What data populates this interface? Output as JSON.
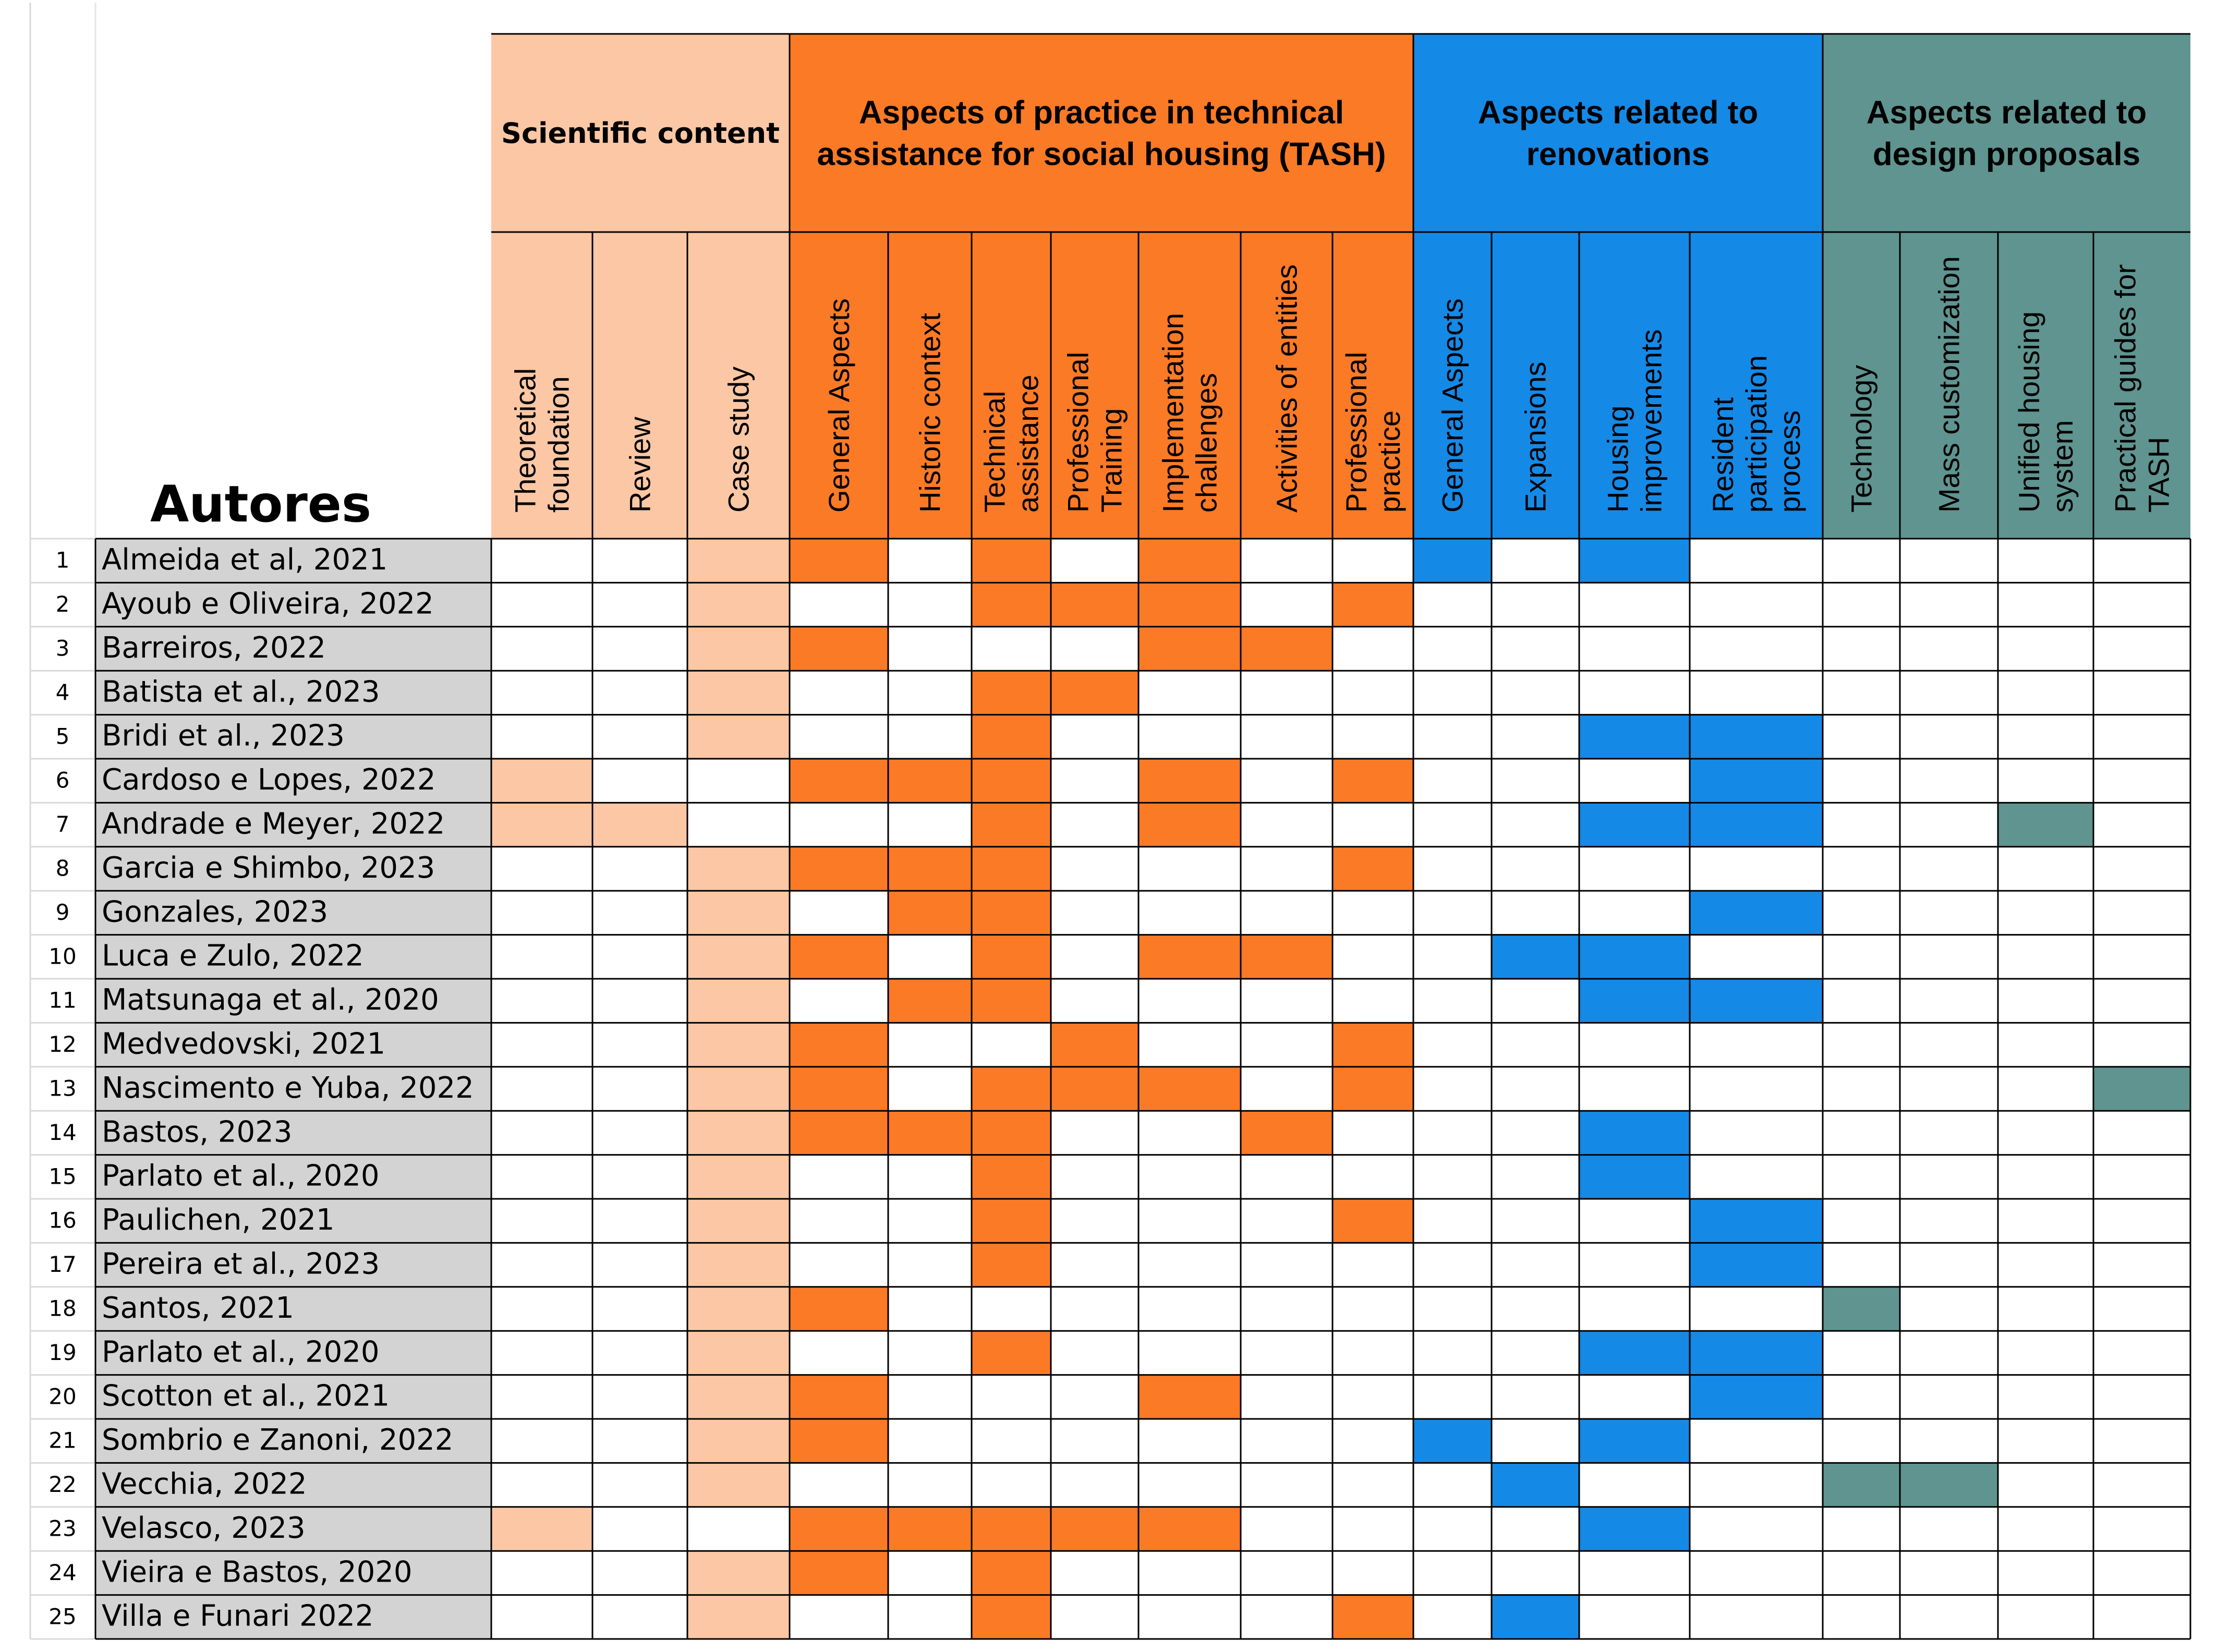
{
  "chart_data": {
    "type": "table",
    "corner_label": "Autores",
    "colors": {
      "scientific": "#fcc7a4",
      "tash": "#fa7a26",
      "renovations": "#1589e6",
      "design": "#5f9490",
      "author_bg": "#d3d3d3"
    },
    "groups": [
      {
        "key": "scientific",
        "title_lines": [
          "Scientific content"
        ]
      },
      {
        "key": "tash",
        "title_lines": [
          "Aspects of practice in technical",
          "assistance for social housing (TASH)"
        ]
      },
      {
        "key": "renovations",
        "title_lines": [
          "Aspects related to",
          "renovations"
        ]
      },
      {
        "key": "design",
        "title_lines": [
          "Aspects related to",
          "design proposals"
        ]
      }
    ],
    "columns": [
      {
        "group": "scientific",
        "lines": [
          "Theoretical",
          "foundation"
        ]
      },
      {
        "group": "scientific",
        "lines": [
          "Review"
        ]
      },
      {
        "group": "scientific",
        "lines": [
          "Case study"
        ]
      },
      {
        "group": "tash",
        "lines": [
          "General Aspects"
        ]
      },
      {
        "group": "tash",
        "lines": [
          "Historic context"
        ]
      },
      {
        "group": "tash",
        "lines": [
          "Technical",
          "assistance"
        ]
      },
      {
        "group": "tash",
        "lines": [
          "Professional",
          "Training"
        ]
      },
      {
        "group": "tash",
        "lines": [
          "Implementation",
          "challenges"
        ]
      },
      {
        "group": "tash",
        "lines": [
          "Activities of entities"
        ]
      },
      {
        "group": "tash",
        "lines": [
          "Professional",
          "practice"
        ]
      },
      {
        "group": "renovations",
        "lines": [
          "General Aspects"
        ]
      },
      {
        "group": "renovations",
        "lines": [
          "Expansions"
        ]
      },
      {
        "group": "renovations",
        "lines": [
          "Housing",
          "improvements"
        ]
      },
      {
        "group": "renovations",
        "lines": [
          "Resident",
          "participation",
          "process"
        ]
      },
      {
        "group": "design",
        "lines": [
          "Technology"
        ]
      },
      {
        "group": "design",
        "lines": [
          "Mass customization"
        ]
      },
      {
        "group": "design",
        "lines": [
          "Unified housing",
          "system"
        ]
      },
      {
        "group": "design",
        "lines": [
          "Practical guides for",
          "TASH"
        ]
      }
    ],
    "rows": [
      {
        "num": "1",
        "author": "Almeida et al, 2021",
        "marks": [
          0,
          0,
          1,
          1,
          0,
          1,
          0,
          1,
          0,
          0,
          1,
          0,
          1,
          0,
          0,
          0,
          0,
          0
        ]
      },
      {
        "num": "2",
        "author": "Ayoub e Oliveira, 2022",
        "marks": [
          0,
          0,
          1,
          0,
          0,
          1,
          1,
          1,
          0,
          1,
          0,
          0,
          0,
          0,
          0,
          0,
          0,
          0
        ]
      },
      {
        "num": "3",
        "author": "Barreiros, 2022",
        "marks": [
          0,
          0,
          1,
          1,
          0,
          0,
          0,
          1,
          1,
          0,
          0,
          0,
          0,
          0,
          0,
          0,
          0,
          0
        ]
      },
      {
        "num": "4",
        "author": "Batista et al., 2023",
        "marks": [
          0,
          0,
          1,
          0,
          0,
          1,
          1,
          0,
          0,
          0,
          0,
          0,
          0,
          0,
          0,
          0,
          0,
          0
        ]
      },
      {
        "num": "5",
        "author": "Bridi et al., 2023",
        "marks": [
          0,
          0,
          1,
          0,
          0,
          1,
          0,
          0,
          0,
          0,
          0,
          0,
          1,
          1,
          0,
          0,
          0,
          0
        ]
      },
      {
        "num": "6",
        "author": "Cardoso e Lopes, 2022",
        "marks": [
          1,
          0,
          0,
          1,
          1,
          1,
          0,
          1,
          0,
          1,
          0,
          0,
          0,
          1,
          0,
          0,
          0,
          0
        ]
      },
      {
        "num": "7",
        "author": "Andrade e Meyer, 2022",
        "marks": [
          1,
          1,
          0,
          0,
          0,
          1,
          0,
          1,
          0,
          0,
          0,
          0,
          1,
          1,
          0,
          0,
          1,
          0
        ]
      },
      {
        "num": "8",
        "author": "Garcia e Shimbo, 2023",
        "marks": [
          0,
          0,
          1,
          1,
          1,
          1,
          0,
          0,
          0,
          1,
          0,
          0,
          0,
          0,
          0,
          0,
          0,
          0
        ]
      },
      {
        "num": "9",
        "author": "Gonzales, 2023",
        "marks": [
          0,
          0,
          1,
          0,
          1,
          1,
          0,
          0,
          0,
          0,
          0,
          0,
          0,
          1,
          0,
          0,
          0,
          0
        ]
      },
      {
        "num": "10",
        "author": "Luca e Zulo, 2022",
        "marks": [
          0,
          0,
          1,
          1,
          0,
          1,
          0,
          1,
          1,
          0,
          0,
          1,
          1,
          0,
          0,
          0,
          0,
          0
        ]
      },
      {
        "num": "11",
        "author": "Matsunaga et al., 2020",
        "marks": [
          0,
          0,
          1,
          0,
          1,
          1,
          0,
          0,
          0,
          0,
          0,
          0,
          1,
          1,
          0,
          0,
          0,
          0
        ]
      },
      {
        "num": "12",
        "author": "Medvedovski, 2021",
        "marks": [
          0,
          0,
          1,
          1,
          0,
          0,
          1,
          0,
          0,
          1,
          0,
          0,
          0,
          0,
          0,
          0,
          0,
          0
        ]
      },
      {
        "num": "13",
        "author": "Nascimento e Yuba, 2022",
        "marks": [
          0,
          0,
          1,
          1,
          0,
          1,
          1,
          1,
          0,
          1,
          0,
          0,
          0,
          0,
          0,
          0,
          0,
          1
        ]
      },
      {
        "num": "14",
        "author": "Bastos, 2023",
        "marks": [
          0,
          0,
          1,
          1,
          1,
          1,
          0,
          0,
          1,
          0,
          0,
          0,
          1,
          0,
          0,
          0,
          0,
          0
        ]
      },
      {
        "num": "15",
        "author": "Parlato et al., 2020",
        "marks": [
          0,
          0,
          1,
          0,
          0,
          1,
          0,
          0,
          0,
          0,
          0,
          0,
          1,
          0,
          0,
          0,
          0,
          0
        ]
      },
      {
        "num": "16",
        "author": "Paulichen, 2021",
        "marks": [
          0,
          0,
          1,
          0,
          0,
          1,
          0,
          0,
          0,
          1,
          0,
          0,
          0,
          1,
          0,
          0,
          0,
          0
        ]
      },
      {
        "num": "17",
        "author": "Pereira et al., 2023",
        "marks": [
          0,
          0,
          1,
          0,
          0,
          1,
          0,
          0,
          0,
          0,
          0,
          0,
          0,
          1,
          0,
          0,
          0,
          0
        ]
      },
      {
        "num": "18",
        "author": "Santos, 2021",
        "marks": [
          0,
          0,
          1,
          1,
          0,
          0,
          0,
          0,
          0,
          0,
          0,
          0,
          0,
          0,
          1,
          0,
          0,
          0
        ]
      },
      {
        "num": "19",
        "author": "Parlato et al., 2020",
        "marks": [
          0,
          0,
          1,
          0,
          0,
          1,
          0,
          0,
          0,
          0,
          0,
          0,
          1,
          1,
          0,
          0,
          0,
          0
        ]
      },
      {
        "num": "20",
        "author": "Scotton et al., 2021",
        "marks": [
          0,
          0,
          1,
          1,
          0,
          0,
          0,
          1,
          0,
          0,
          0,
          0,
          0,
          1,
          0,
          0,
          0,
          0
        ]
      },
      {
        "num": "21",
        "author": "Sombrio e Zanoni, 2022",
        "marks": [
          0,
          0,
          1,
          1,
          0,
          0,
          0,
          0,
          0,
          0,
          1,
          0,
          1,
          0,
          0,
          0,
          0,
          0
        ]
      },
      {
        "num": "22",
        "author": "Vecchia, 2022",
        "marks": [
          0,
          0,
          1,
          0,
          0,
          0,
          0,
          0,
          0,
          0,
          0,
          1,
          0,
          0,
          1,
          1,
          0,
          0
        ]
      },
      {
        "num": "23",
        "author": "Velasco, 2023",
        "marks": [
          1,
          0,
          0,
          1,
          1,
          1,
          1,
          1,
          0,
          0,
          0,
          0,
          1,
          0,
          0,
          0,
          0,
          0
        ]
      },
      {
        "num": "24",
        "author": "Vieira e Bastos, 2020",
        "marks": [
          0,
          0,
          1,
          1,
          0,
          1,
          0,
          0,
          0,
          0,
          0,
          0,
          0,
          0,
          0,
          0,
          0,
          0
        ]
      },
      {
        "num": "25",
        "author": "Villa e Funari 2022",
        "marks": [
          0,
          0,
          1,
          0,
          0,
          1,
          0,
          0,
          0,
          1,
          0,
          1,
          0,
          0,
          0,
          0,
          0,
          0
        ]
      }
    ]
  }
}
